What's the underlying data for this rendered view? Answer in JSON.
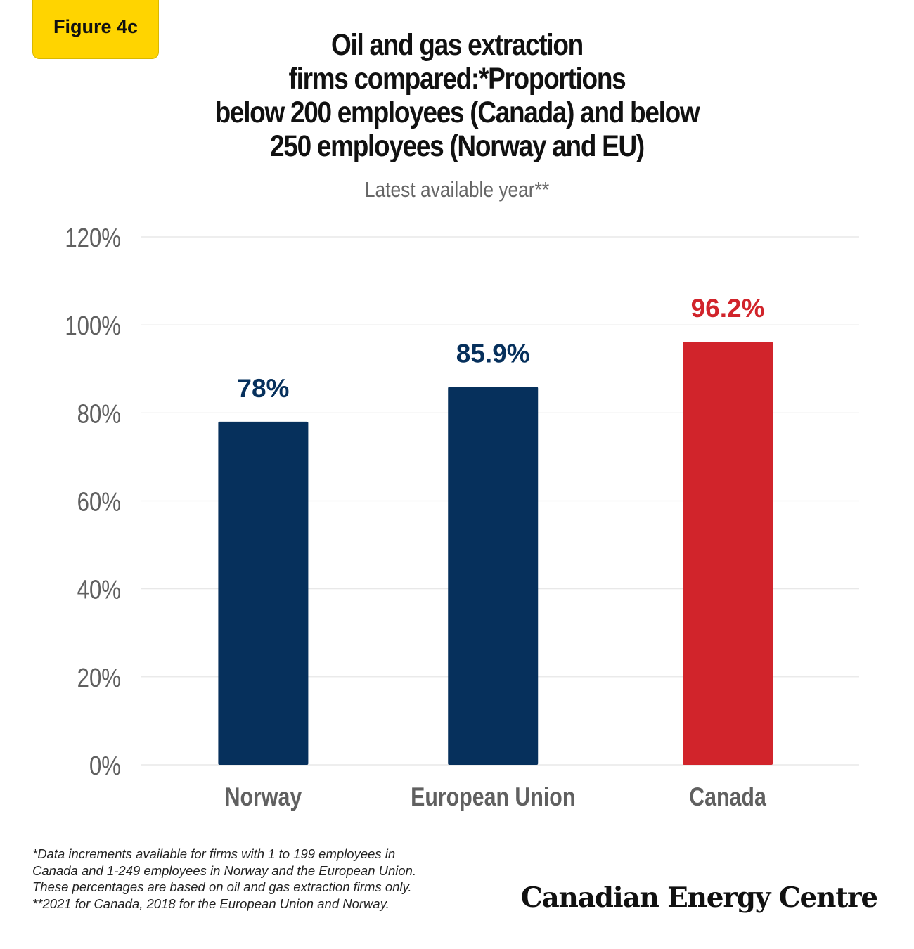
{
  "figure_label": "Figure 4c",
  "notes": [
    "*Data increments available for firms with 1 to 199 employees in",
    "Canada and 1-249 employees in Norway and the European Union.",
    "These percentages are based on oil and gas extraction firms only.",
    "**2021 for Canada, 2018 for the European Union and Norway."
  ],
  "logo_text": "Canadian Energy Centre",
  "colors": {
    "primary": "#06305c",
    "highlight": "#d1242b",
    "axis_text": "#606060"
  },
  "chart_data": {
    "type": "bar",
    "title_lines": [
      "Oil and gas extraction",
      "firms compared:*Proportions",
      "below 200 employees (Canada) and below",
      "250 employees (Norway and EU)"
    ],
    "subtitle": "Latest available year**",
    "categories": [
      "Norway",
      "European Union",
      "Canada"
    ],
    "values": [
      78,
      85.9,
      96.2
    ],
    "data_labels": [
      "78%",
      "85.9%",
      "96.2%"
    ],
    "bar_colors": [
      "#06305c",
      "#06305c",
      "#d1242b"
    ],
    "ylim": [
      0,
      120
    ],
    "yticks": [
      0,
      20,
      40,
      60,
      80,
      100,
      120
    ],
    "ytick_labels": [
      "0%",
      "20%",
      "40%",
      "60%",
      "80%",
      "100%",
      "120%"
    ],
    "grid": true,
    "xlabel": "",
    "ylabel": ""
  }
}
